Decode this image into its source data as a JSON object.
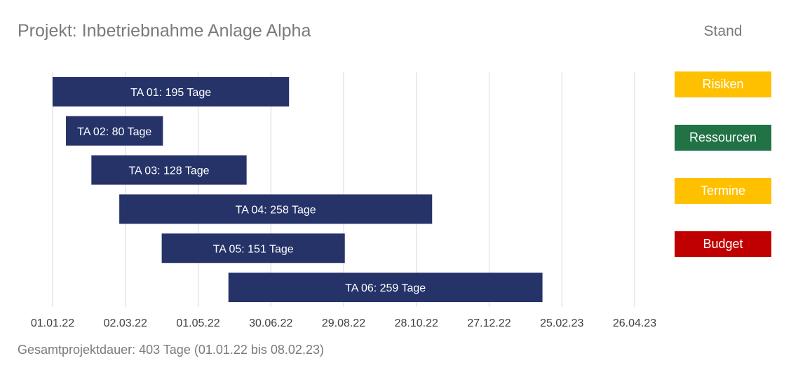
{
  "title": "Projekt: Inbetriebnahme Anlage Alpha",
  "stand_title": "Stand",
  "status": [
    {
      "label": "Risiken",
      "color": "#FFC000"
    },
    {
      "label": "Ressourcen",
      "color": "#217346"
    },
    {
      "label": "Termine",
      "color": "#FFC000"
    },
    {
      "label": "Budget",
      "color": "#C00000"
    }
  ],
  "footer": "Gesamtprojektdauer: 403 Tage (01.01.22 bis 08.02.23)",
  "chart_data": {
    "type": "bar",
    "orientation": "horizontal",
    "stacked_gantt": true,
    "xlim": [
      "2022-01-01",
      "2023-04-26"
    ],
    "x_ticks": [
      "01.01.22",
      "02.03.22",
      "01.05.22",
      "30.06.22",
      "29.08.22",
      "28.10.22",
      "27.12.22",
      "25.02.23",
      "26.04.23"
    ],
    "x_tick_step_days": 60,
    "grid": true,
    "bar_color": "#253369",
    "tasks": [
      {
        "label": "TA 01: 195 Tage",
        "start": "2022-01-01",
        "duration": 195
      },
      {
        "label": "TA 02: 80 Tage",
        "start": "2022-01-12",
        "duration": 80
      },
      {
        "label": "TA 03: 128 Tage",
        "start": "2022-02-02",
        "duration": 128
      },
      {
        "label": "TA 04: 258 Tage",
        "start": "2022-02-25",
        "duration": 258
      },
      {
        "label": "TA 05: 151 Tage",
        "start": "2022-04-01",
        "duration": 151
      },
      {
        "label": "TA 06: 259 Tage",
        "start": "2022-05-26",
        "duration": 259
      }
    ]
  }
}
